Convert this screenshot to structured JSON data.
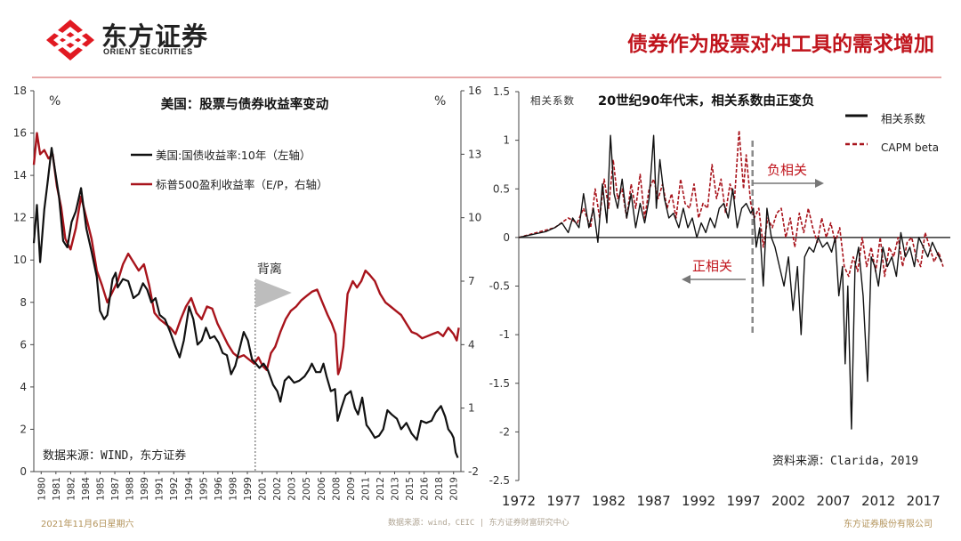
{
  "header": {
    "logo_cn": "东方证券",
    "logo_en": "ORIENT SECURITIES",
    "title": "债券作为股票对冲工具的需求增加"
  },
  "footer": {
    "date": "2021年11月6日星期六",
    "source": "数据来源：wind，CEIC | 东方证券财富研究中心",
    "company": "东方证券股份有限公司"
  },
  "colors": {
    "black_series": "#111111",
    "red_series": "#a8141c",
    "dashed_series": "#a8141c",
    "accent": "#c0141c",
    "zero_line": "#333333"
  },
  "chart_data": [
    {
      "type": "line",
      "title": "美国：股票与债券收益率变动",
      "ylabel_left": "%",
      "ylabel_right": "%",
      "ylim_left": [
        0,
        18
      ],
      "ylim_right": [
        -2,
        16
      ],
      "xlim": [
        1980,
        2020.7
      ],
      "yticks_left": [
        "0",
        "2",
        "4",
        "6",
        "8",
        "10",
        "12",
        "14",
        "16",
        "18"
      ],
      "yticks_right": [
        "-2",
        "1",
        "4",
        "7",
        "10",
        "13",
        "16"
      ],
      "xticks": [
        "1980",
        "1981",
        "1982",
        "1984",
        "1985",
        "1987",
        "1988",
        "1989",
        "1991",
        "1992",
        "1994",
        "1995",
        "1996",
        "1998",
        "1999",
        "2001",
        "2002",
        "2003",
        "2005",
        "2006",
        "2008",
        "2009",
        "2011",
        "2012",
        "2013",
        "2015",
        "2016",
        "2018",
        "2019"
      ],
      "annotation": "背离",
      "annotation_x": 2001.1,
      "source": "数据来源：WIND，东方证券",
      "series": [
        {
          "name": "美国:国债收益率:10年（左轴）",
          "axis": "left",
          "x": [
            1980,
            1980.3,
            1980.6,
            1981,
            1981.3,
            1981.7,
            1982,
            1982.4,
            1982.8,
            1983.2,
            1983.6,
            1984,
            1984.5,
            1985,
            1985.5,
            1986,
            1986.3,
            1986.7,
            1987,
            1987.5,
            1987.8,
            1988,
            1988.5,
            1989,
            1989.5,
            1990,
            1990.4,
            1990.8,
            1991.2,
            1991.6,
            1992,
            1992.5,
            1993,
            1993.5,
            1993.9,
            1994.3,
            1994.8,
            1995.2,
            1995.6,
            1996,
            1996.4,
            1996.8,
            1997.2,
            1997.6,
            1998,
            1998.4,
            1998.8,
            1999.2,
            1999.6,
            2000,
            2000.4,
            2000.8,
            2001,
            2001.5,
            2001.9,
            2002.3,
            2002.8,
            2003.2,
            2003.5,
            2003.9,
            2004.3,
            2004.8,
            2005.3,
            2005.8,
            2006.2,
            2006.5,
            2006.9,
            2007.3,
            2007.6,
            2007.9,
            2008.3,
            2008.7,
            2008.95,
            2009.3,
            2009.7,
            2010.2,
            2010.6,
            2010.9,
            2011.3,
            2011.7,
            2012,
            2012.5,
            2012.9,
            2013.3,
            2013.7,
            2014.1,
            2014.6,
            2015,
            2015.5,
            2016,
            2016.5,
            2016.9,
            2017.4,
            2017.9,
            2018.3,
            2018.8,
            2019.2,
            2019.5,
            2019.8,
            2020,
            2020.2,
            2020.4
          ],
          "values": [
            10.8,
            12.6,
            9.9,
            12.4,
            13.6,
            15.3,
            14.3,
            13.0,
            10.9,
            10.6,
            11.8,
            12.3,
            13.4,
            11.5,
            10.4,
            9.2,
            7.6,
            7.2,
            7.4,
            9.1,
            9.4,
            8.7,
            9.1,
            9.0,
            8.2,
            8.4,
            8.9,
            8.6,
            8.0,
            8.2,
            7.4,
            7.2,
            6.6,
            5.9,
            5.4,
            6.2,
            7.8,
            7.2,
            6.0,
            6.2,
            6.8,
            6.3,
            6.4,
            6.1,
            5.6,
            5.5,
            4.6,
            5.0,
            5.8,
            6.6,
            6.2,
            5.3,
            5.2,
            4.9,
            5.1,
            4.8,
            4.1,
            3.8,
            3.3,
            4.3,
            4.5,
            4.2,
            4.3,
            4.5,
            4.8,
            5.1,
            4.7,
            4.7,
            5.1,
            4.5,
            3.8,
            3.9,
            2.4,
            3.0,
            3.6,
            3.8,
            3.0,
            2.7,
            3.5,
            2.2,
            2.0,
            1.6,
            1.7,
            2.0,
            2.9,
            2.7,
            2.5,
            2.0,
            2.3,
            1.8,
            1.5,
            2.4,
            2.3,
            2.4,
            2.8,
            3.1,
            2.6,
            2.0,
            1.8,
            1.6,
            0.9,
            0.65
          ]
        },
        {
          "name": "标普500盈利收益率（E/P，右轴）",
          "axis": "right",
          "x": [
            1980,
            1980.3,
            1980.6,
            1981,
            1981.4,
            1981.8,
            1982.2,
            1982.6,
            1983,
            1983.5,
            1984,
            1984.5,
            1985,
            1985.5,
            1986,
            1986.5,
            1987,
            1987.5,
            1988,
            1988.5,
            1989,
            1989.5,
            1990,
            1990.5,
            1991,
            1991.5,
            1992,
            1992.5,
            1993,
            1993.5,
            1994,
            1994.5,
            1995,
            1995.5,
            1996,
            1996.5,
            1997,
            1997.5,
            1998,
            1998.5,
            1999,
            1999.5,
            2000,
            2000.5,
            2001,
            2001.4,
            2001.8,
            2002.2,
            2002.6,
            2003,
            2003.5,
            2004,
            2004.5,
            2005,
            2005.5,
            2006,
            2006.5,
            2007,
            2007.5,
            2008,
            2008.4,
            2008.75,
            2009,
            2009.2,
            2009.5,
            2009.9,
            2010.4,
            2010.8,
            2011.2,
            2011.6,
            2012,
            2012.5,
            2013,
            2013.5,
            2014,
            2014.5,
            2015,
            2015.5,
            2016,
            2016.5,
            2017,
            2017.5,
            2018,
            2018.5,
            2019,
            2019.5,
            2020,
            2020.3,
            2020.5
          ],
          "values": [
            12.5,
            14.0,
            13.0,
            13.2,
            12.8,
            13.0,
            11.5,
            10.5,
            9.0,
            8.5,
            9.5,
            11.0,
            10.0,
            9.0,
            7.5,
            6.8,
            6.0,
            6.5,
            7.0,
            7.8,
            8.3,
            7.9,
            7.5,
            7.8,
            6.8,
            5.5,
            5.2,
            5.0,
            4.8,
            4.5,
            5.2,
            5.8,
            6.2,
            5.5,
            5.2,
            5.8,
            5.7,
            5.0,
            4.5,
            4.0,
            3.6,
            3.4,
            3.5,
            3.3,
            3.1,
            3.4,
            3.0,
            2.8,
            3.6,
            3.9,
            4.6,
            5.2,
            5.6,
            5.8,
            6.1,
            6.3,
            6.5,
            6.6,
            6.0,
            5.4,
            5.0,
            4.5,
            2.6,
            2.9,
            3.9,
            6.4,
            7.0,
            6.7,
            7.0,
            7.5,
            7.3,
            7.0,
            6.4,
            6.0,
            5.8,
            5.6,
            5.4,
            5.0,
            4.6,
            4.5,
            4.3,
            4.4,
            4.5,
            4.6,
            4.4,
            4.8,
            4.5,
            4.2,
            4.8
          ]
        }
      ]
    },
    {
      "type": "line",
      "title": "20世纪90年代末，相关系数由正变负",
      "ylabel": "相关系数",
      "ylim": [
        -2.5,
        1.5
      ],
      "xlim": [
        1972,
        2020
      ],
      "yticks": [
        "1.5",
        "1",
        "0.5",
        "0",
        "-0.5",
        "-1",
        "-1.5",
        "-2",
        "-2.5"
      ],
      "xticks": [
        "1972",
        "1977",
        "1982",
        "1987",
        "1992",
        "1997",
        "2002",
        "2007",
        "2012",
        "2017"
      ],
      "annotations": [
        "负相关",
        "正相关"
      ],
      "divider_x": 1998,
      "source": "资料来源：Clarida，2019",
      "series": [
        {
          "name": "相关系数",
          "style": "solid",
          "x": [
            1972,
            1973,
            1974,
            1975,
            1976,
            1976.8,
            1977.5,
            1978,
            1978.7,
            1979.2,
            1979.8,
            1980.3,
            1980.8,
            1981.3,
            1981.8,
            1982.2,
            1982.6,
            1983,
            1983.5,
            1984,
            1984.5,
            1985,
            1985.5,
            1986,
            1986.5,
            1987,
            1987.3,
            1987.7,
            1988.2,
            1988.7,
            1989.2,
            1989.8,
            1990.3,
            1990.8,
            1991.3,
            1991.8,
            1992.3,
            1992.8,
            1993.3,
            1993.8,
            1994.3,
            1994.8,
            1995.3,
            1995.8,
            1996.3,
            1996.8,
            1997.3,
            1997.8,
            1998.1,
            1998.4,
            1998.8,
            1999.2,
            1999.6,
            2000.1,
            2000.5,
            2001,
            2001.5,
            2002,
            2002.5,
            2003,
            2003.4,
            2003.8,
            2004.3,
            2004.8,
            2005.3,
            2005.8,
            2006.3,
            2006.8,
            2007.2,
            2007.6,
            2008,
            2008.3,
            2008.6,
            2009,
            2009.4,
            2009.8,
            2010.3,
            2010.8,
            2011.2,
            2011.6,
            2012,
            2012.5,
            2013,
            2013.5,
            2014,
            2014.5,
            2015,
            2015.5,
            2016,
            2016.5,
            2017,
            2017.5,
            2018,
            2018.5,
            2019
          ],
          "values": [
            0.0,
            0.02,
            0.04,
            0.06,
            0.1,
            0.15,
            0.05,
            0.2,
            0.1,
            0.45,
            0.1,
            0.3,
            -0.05,
            0.55,
            0.15,
            1.05,
            0.45,
            0.3,
            0.6,
            0.2,
            0.45,
            0.1,
            0.35,
            0.15,
            0.4,
            1.05,
            0.3,
            0.8,
            0.4,
            0.2,
            0.25,
            0.1,
            0.3,
            0.1,
            0.2,
            0.0,
            0.15,
            0.05,
            0.2,
            0.1,
            0.3,
            0.35,
            0.2,
            0.5,
            0.1,
            0.3,
            0.35,
            0.25,
            0.3,
            -0.1,
            0.1,
            -0.5,
            0.3,
            0.0,
            -0.1,
            -0.3,
            -0.5,
            -0.2,
            -0.75,
            -0.3,
            -1.0,
            -0.2,
            -0.1,
            -0.15,
            0.0,
            -0.1,
            -0.05,
            -0.15,
            0.0,
            -0.6,
            -0.3,
            -1.3,
            -0.5,
            -1.97,
            -0.3,
            -0.1,
            -0.6,
            -1.48,
            -0.2,
            -0.3,
            -0.5,
            -0.1,
            -0.3,
            -0.2,
            -0.4,
            0.05,
            -0.2,
            -0.1,
            -0.3,
            0.0,
            -0.1,
            -0.2,
            -0.05,
            -0.15,
            -0.25
          ]
        },
        {
          "name": "CAPM beta",
          "style": "dashed",
          "x": [
            1972,
            1974,
            1976,
            1977.5,
            1978.5,
            1979.2,
            1980,
            1980.5,
            1981,
            1981.5,
            1982,
            1982.5,
            1983,
            1983.5,
            1984,
            1984.5,
            1985,
            1985.5,
            1986,
            1986.5,
            1987,
            1987.5,
            1988,
            1988.5,
            1989,
            1989.5,
            1990,
            1990.5,
            1991,
            1991.5,
            1992,
            1992.5,
            1993,
            1993.5,
            1994,
            1994.5,
            1995,
            1995.5,
            1996,
            1996.5,
            1997,
            1997.3,
            1997.8,
            1998.2,
            1998.7,
            1999.2,
            1999.7,
            2000.2,
            2000.7,
            2001.2,
            2001.7,
            2002.2,
            2002.7,
            2003.2,
            2003.7,
            2004.2,
            2004.7,
            2005.2,
            2005.7,
            2006.2,
            2006.7,
            2007.2,
            2007.7,
            2008.2,
            2008.7,
            2009.2,
            2009.7,
            2010.2,
            2010.7,
            2011.2,
            2011.7,
            2012.2,
            2012.7,
            2013.2,
            2013.7,
            2014.2,
            2014.7,
            2015.2,
            2015.7,
            2016.2,
            2016.7,
            2017.2,
            2017.7,
            2018.2,
            2018.7,
            2019.2
          ],
          "values": [
            0.0,
            0.05,
            0.1,
            0.2,
            0.15,
            0.3,
            0.1,
            0.5,
            0.2,
            0.6,
            0.3,
            0.8,
            0.4,
            0.5,
            0.2,
            0.55,
            0.3,
            0.65,
            0.2,
            0.5,
            0.6,
            0.4,
            0.55,
            0.3,
            0.45,
            0.2,
            0.6,
            0.35,
            0.3,
            0.55,
            0.2,
            0.35,
            0.3,
            0.75,
            0.4,
            0.6,
            0.25,
            0.55,
            0.4,
            1.1,
            0.5,
            0.85,
            0.35,
            0.2,
            0.3,
            -0.1,
            0.2,
            0.1,
            0.25,
            0.3,
            0.0,
            0.2,
            -0.1,
            0.25,
            0.05,
            0.3,
            0.1,
            -0.05,
            0.2,
            0.0,
            0.15,
            -0.05,
            0.1,
            -0.3,
            -0.4,
            -0.2,
            -0.35,
            0.0,
            -0.3,
            -0.1,
            -0.35,
            0.0,
            -0.4,
            -0.1,
            -0.2,
            0.0,
            -0.3,
            -0.05,
            0.0,
            -0.2,
            -0.3,
            0.05,
            -0.1,
            -0.25,
            -0.15,
            -0.3
          ]
        }
      ]
    }
  ]
}
